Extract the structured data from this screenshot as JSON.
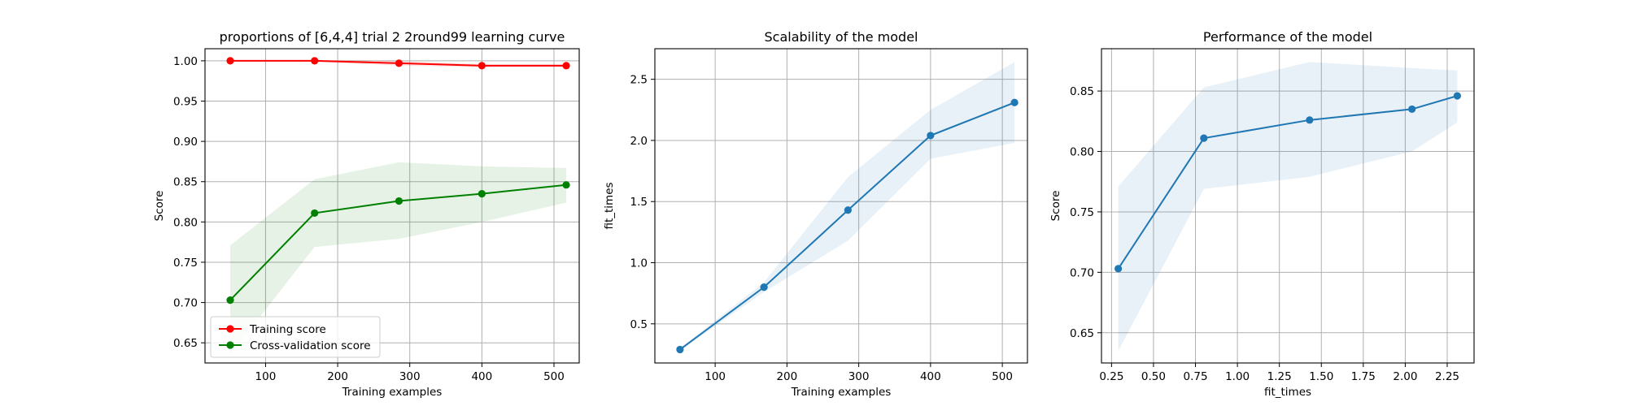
{
  "chart_data": [
    {
      "type": "line",
      "title": "proportions of [6,4,4] trial 2 2round99 learning curve",
      "xlabel": "Training examples",
      "ylabel": "Score",
      "xlim": [
        16,
        535
      ],
      "ylim": [
        0.625,
        1.015
      ],
      "xticks": [
        100,
        200,
        300,
        400,
        500
      ],
      "yticks": [
        0.65,
        0.7,
        0.75,
        0.8,
        0.85,
        0.9,
        0.95,
        1.0
      ],
      "ytick_labels": [
        "0.65",
        "0.70",
        "0.75",
        "0.80",
        "0.85",
        "0.90",
        "0.95",
        "1.00"
      ],
      "grid": true,
      "legend": "lower-left",
      "x": [
        51,
        168,
        285,
        400,
        517
      ],
      "series": [
        {
          "name": "Training score",
          "color": "#ff0000",
          "values": [
            1.0,
            1.0,
            0.997,
            0.994,
            0.994
          ],
          "band_low": [
            1.0,
            0.999,
            0.994,
            0.992,
            0.992
          ],
          "band_high": [
            1.0,
            1.001,
            1.0,
            0.996,
            0.996
          ],
          "band_color": "#ff0000"
        },
        {
          "name": "Cross-validation score",
          "color": "#008000",
          "values": [
            0.703,
            0.811,
            0.826,
            0.835,
            0.846
          ],
          "band_low": [
            0.635,
            0.769,
            0.779,
            0.8,
            0.824
          ],
          "band_high": [
            0.771,
            0.853,
            0.874,
            0.869,
            0.867
          ],
          "band_color": "#008000"
        }
      ]
    },
    {
      "type": "line",
      "title": "Scalability of the model",
      "xlabel": "Training examples",
      "ylabel": "fit_times",
      "xlim": [
        16,
        535
      ],
      "ylim": [
        0.18,
        2.75
      ],
      "xticks": [
        100,
        200,
        300,
        400,
        500
      ],
      "yticks": [
        0.5,
        1.0,
        1.5,
        2.0,
        2.5
      ],
      "ytick_labels": [
        "0.5",
        "1.0",
        "1.5",
        "2.0",
        "2.5"
      ],
      "grid": true,
      "x": [
        51,
        168,
        285,
        400,
        517
      ],
      "series": [
        {
          "name": "",
          "color": "#1f77b4",
          "values": [
            0.29,
            0.8,
            1.43,
            2.04,
            2.31
          ],
          "band_low": [
            0.28,
            0.76,
            1.18,
            1.85,
            1.98
          ],
          "band_high": [
            0.3,
            0.84,
            1.7,
            2.25,
            2.64
          ],
          "band_color": "#1f77b4"
        }
      ]
    },
    {
      "type": "line",
      "title": "Performance of the model",
      "xlabel": "fit_times",
      "ylabel": "Score",
      "xlim": [
        0.19,
        2.41
      ],
      "ylim": [
        0.625,
        0.885
      ],
      "xticks": [
        0.25,
        0.5,
        0.75,
        1.0,
        1.25,
        1.5,
        1.75,
        2.0,
        2.25
      ],
      "xtick_labels": [
        "0.25",
        "0.50",
        "0.75",
        "1.00",
        "1.25",
        "1.50",
        "1.75",
        "2.00",
        "2.25"
      ],
      "yticks": [
        0.65,
        0.7,
        0.75,
        0.8,
        0.85
      ],
      "ytick_labels": [
        "0.65",
        "0.70",
        "0.75",
        "0.80",
        "0.85"
      ],
      "grid": true,
      "x": [
        0.29,
        0.8,
        1.43,
        2.04,
        2.31
      ],
      "series": [
        {
          "name": "",
          "color": "#1f77b4",
          "values": [
            0.703,
            0.811,
            0.826,
            0.835,
            0.846
          ],
          "band_low": [
            0.635,
            0.769,
            0.779,
            0.8,
            0.824
          ],
          "band_high": [
            0.771,
            0.853,
            0.874,
            0.869,
            0.867
          ],
          "band_color": "#1f77b4"
        }
      ]
    }
  ]
}
